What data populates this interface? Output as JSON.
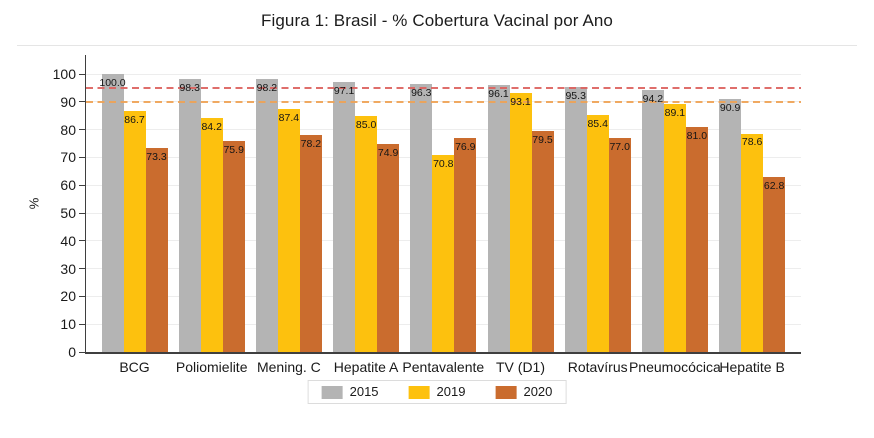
{
  "figure": {
    "title": "Figura 1: Brasil - % Cobertura Vacinal por Ano"
  },
  "chart_data": {
    "type": "bar",
    "title": "Figura 1: Brasil - % Cobertura Vacinal por Ano",
    "xlabel": "",
    "ylabel": "%",
    "ylim": [
      0,
      100
    ],
    "yticks": [
      0,
      10,
      20,
      30,
      40,
      50,
      60,
      70,
      80,
      90,
      100
    ],
    "grid": true,
    "legend_position": "bottom-center",
    "categories": [
      "BCG",
      "Poliomielite",
      "Mening. C",
      "Hepatite A",
      "Pentavalente",
      "TV (D1)",
      "Rotavírus",
      "Pneumocócica",
      "Hepatite B"
    ],
    "series": [
      {
        "name": "2015",
        "color": "#b4b4b4",
        "values": [
          100.0,
          98.3,
          98.2,
          97.1,
          96.3,
          96.1,
          95.3,
          94.2,
          90.9
        ]
      },
      {
        "name": "2019",
        "color": "#fdc10e",
        "values": [
          86.7,
          84.2,
          87.4,
          85.0,
          70.8,
          93.1,
          85.4,
          89.1,
          78.6
        ]
      },
      {
        "name": "2020",
        "color": "#ca6c2e",
        "values": [
          73.3,
          75.9,
          78.2,
          74.9,
          76.9,
          79.5,
          77.0,
          81.0,
          62.8
        ]
      }
    ],
    "bar_labels": "one_decimal",
    "reference_lines": [
      {
        "value": 95,
        "style": "dashed",
        "color": "#dc615e"
      },
      {
        "value": 90,
        "style": "dashed",
        "color": "#efa254"
      }
    ],
    "colors": {
      "axis": "#3f3f3f",
      "gridline": "#ededed",
      "text": "#1a1a1a"
    }
  }
}
